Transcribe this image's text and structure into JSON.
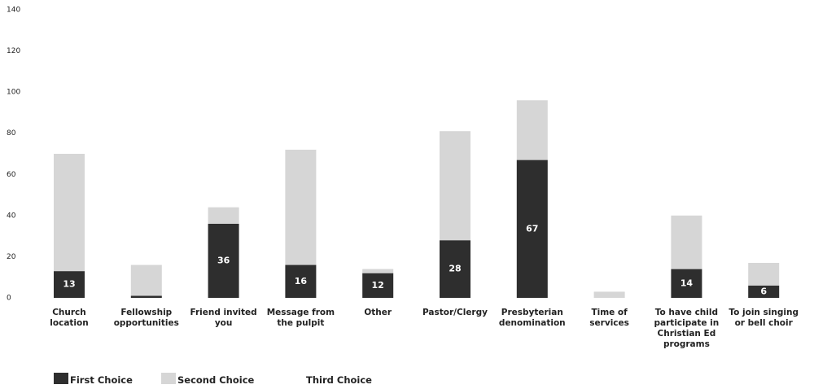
{
  "chart_data": {
    "type": "stacked_bar",
    "categories": [
      "Church location",
      "Fellowship opportunities",
      "Friend invited you",
      "Message from the pulpit",
      "Other",
      "Pastor/Clergy",
      "Presbyterian denomination",
      "Time of services",
      "To have child participate in Christian Ed programs",
      "To join singing or bell choir"
    ],
    "series": [
      {
        "name": "First Choice",
        "color": "#2e2e2e",
        "values": [
          13,
          1,
          36,
          16,
          12,
          28,
          67,
          0,
          14,
          6
        ]
      },
      {
        "name": "Second Choice",
        "color": "#d6d6d6",
        "values": [
          57,
          15,
          8,
          56,
          2,
          53,
          29,
          3,
          26,
          11
        ]
      },
      {
        "name": "Third Choice",
        "color": "#ffffff",
        "values": [
          0,
          0,
          0,
          0,
          0,
          0,
          0,
          0,
          0,
          0
        ]
      }
    ],
    "ylim": [
      0,
      140
    ],
    "yticks": [
      0,
      20,
      40,
      60,
      80,
      100,
      120,
      140
    ],
    "grid": false,
    "legend": "bottom-left"
  }
}
